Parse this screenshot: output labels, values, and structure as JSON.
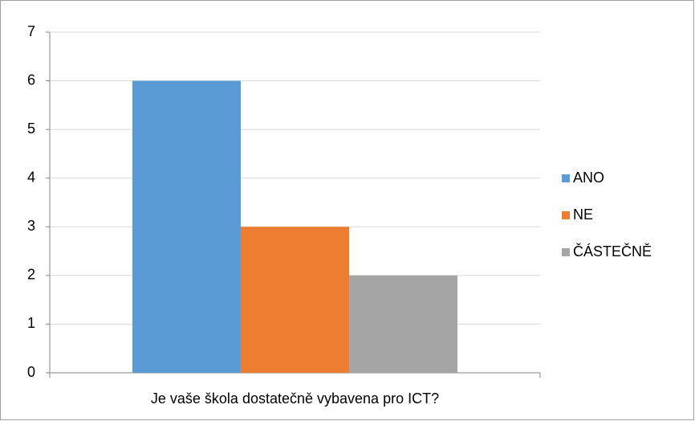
{
  "chart_data": {
    "type": "bar",
    "categories": [
      "Je vaše škola dostatečně vybavena pro ICT?"
    ],
    "series": [
      {
        "name": "ANO",
        "color": "#5b9bd5",
        "values": [
          6
        ]
      },
      {
        "name": "NE",
        "color": "#ed7d31",
        "values": [
          3
        ]
      },
      {
        "name": "ČÁSTEČNĚ",
        "color": "#a5a5a5",
        "values": [
          2
        ]
      }
    ],
    "ylim": [
      0,
      7
    ],
    "yticks": [
      0,
      1,
      2,
      3,
      4,
      5,
      6,
      7
    ],
    "grid": true,
    "legend": "right"
  }
}
